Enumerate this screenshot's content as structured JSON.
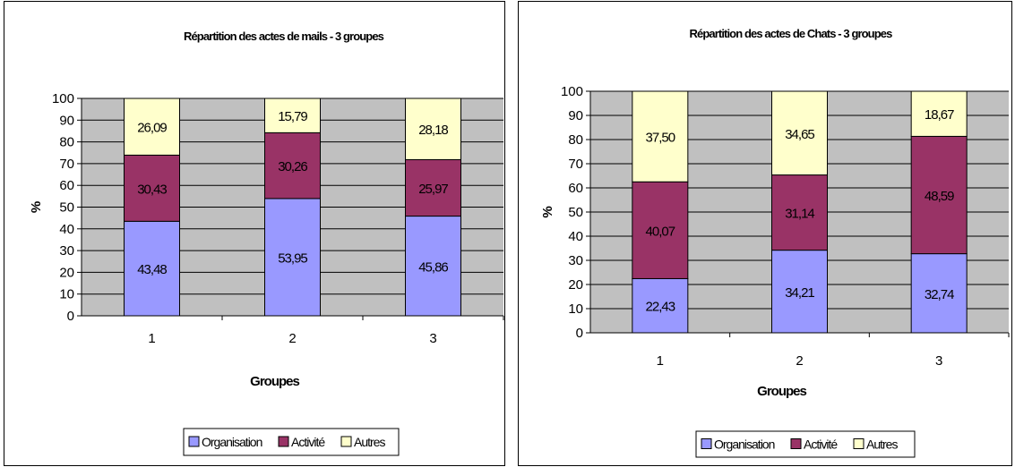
{
  "chart_data": [
    {
      "type": "bar",
      "stacked": true,
      "title": "Répartition des actes de mails - 3 groupes",
      "xlabel": "Groupes",
      "ylabel": "%",
      "ylim": [
        0,
        100
      ],
      "yticks": [
        "0",
        "10",
        "20",
        "30",
        "40",
        "50",
        "60",
        "70",
        "80",
        "90",
        "100"
      ],
      "categories": [
        "1",
        "2",
        "3"
      ],
      "grid": true,
      "legend_position": "bottom",
      "series": [
        {
          "name": "Organisation",
          "color": "#9999ff",
          "values": [
            43.48,
            53.95,
            45.86
          ],
          "labels": [
            "43,48",
            "53,95",
            "45,86"
          ]
        },
        {
          "name": "Activité",
          "color": "#993366",
          "values": [
            30.43,
            30.26,
            25.97
          ],
          "labels": [
            "30,43",
            "30,26",
            "25,97"
          ]
        },
        {
          "name": "Autres",
          "color": "#ffffcc",
          "values": [
            26.09,
            15.79,
            28.18
          ],
          "labels": [
            "26,09",
            "15,79",
            "28,18"
          ]
        }
      ]
    },
    {
      "type": "bar",
      "stacked": true,
      "title": "Répartition des actes de Chats - 3 groupes",
      "xlabel": "Groupes",
      "ylabel": "%",
      "ylim": [
        0,
        100
      ],
      "yticks": [
        "0",
        "10",
        "20",
        "30",
        "40",
        "50",
        "60",
        "70",
        "80",
        "90",
        "100"
      ],
      "categories": [
        "1",
        "2",
        "3"
      ],
      "grid": true,
      "legend_position": "bottom",
      "series": [
        {
          "name": "Organisation",
          "color": "#9999ff",
          "values": [
            22.43,
            34.21,
            32.74
          ],
          "labels": [
            "22,43",
            "34,21",
            "32,74"
          ]
        },
        {
          "name": "Activité",
          "color": "#993366",
          "values": [
            40.07,
            31.14,
            48.59
          ],
          "labels": [
            "40,07",
            "31,14",
            "48,59"
          ]
        },
        {
          "name": "Autres",
          "color": "#ffffcc",
          "values": [
            37.5,
            34.65,
            18.67
          ],
          "labels": [
            "37,50",
            "34,65",
            "18,67"
          ]
        }
      ]
    }
  ]
}
